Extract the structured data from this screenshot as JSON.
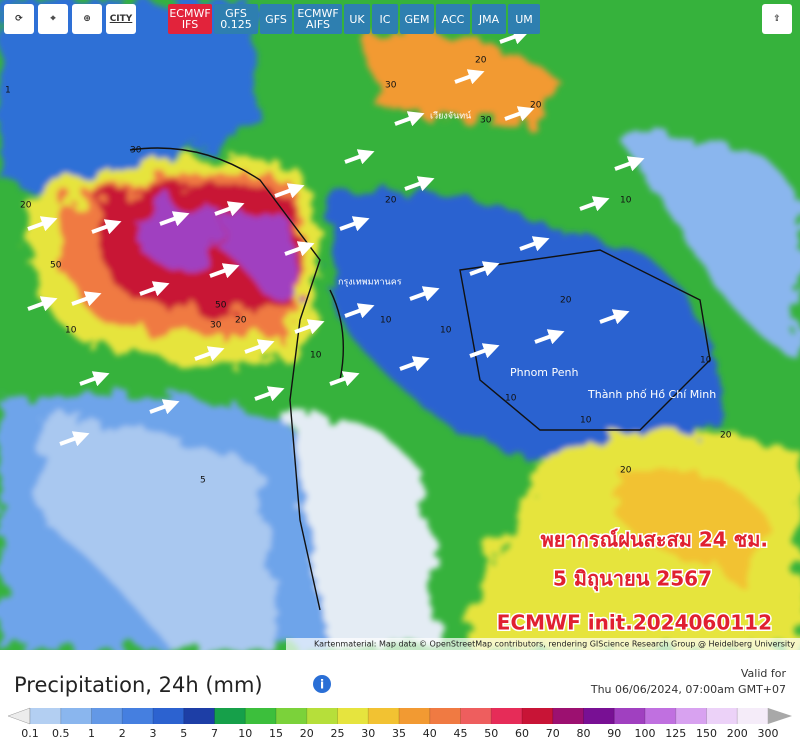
{
  "toolbar": {
    "city": "CITY",
    "models": [
      "ECMWF IFS",
      "GFS 0.125",
      "GFS",
      "ECMWF AIFS",
      "UK",
      "IC",
      "GEM",
      "ACC",
      "JMA",
      "UM"
    ],
    "active_model": 0
  },
  "map": {
    "places": [
      "Phnom Penh",
      "Thành phố Hồ Chí Minh",
      "กรุงเทพมหานคร",
      "เวียงจันทน์"
    ],
    "contour_labels": [
      "30",
      "20",
      "50",
      "10",
      "20",
      "30",
      "50",
      "20",
      "10",
      "30",
      "10",
      "20",
      "20",
      "10",
      "20",
      "10",
      "10",
      "10",
      "20",
      "30",
      "1",
      "20",
      "10",
      "5"
    ],
    "overlay": [
      "พยากรณ์ฝนสะสม 24 ชม.",
      "5 มิถุนายน 2567",
      "ECMWF init.2024060112"
    ],
    "attribution": "Kartenmaterial: Map data © OpenStreetMap contributors, rendering GIScience Research Group @ Heidelberg University"
  },
  "legend": {
    "title": "Precipitation, 24h (mm)",
    "valid_label": "Valid for",
    "valid_time": "Thu 06/06/2024, 07:00am GMT+07",
    "ticks": [
      0.1,
      0.5,
      1,
      2,
      3,
      5,
      7,
      10,
      15,
      20,
      25,
      30,
      35,
      40,
      45,
      50,
      60,
      70,
      80,
      90,
      100,
      125,
      150,
      200,
      300
    ],
    "colors": [
      "#ececec",
      "#b3cff2",
      "#8ab6ee",
      "#6398e6",
      "#457fe0",
      "#2c62d0",
      "#1d3ea6",
      "#16a04a",
      "#3cbf3c",
      "#7bd23a",
      "#b6df3a",
      "#e6e43e",
      "#f2c232",
      "#f29a32",
      "#f07a42",
      "#ee5e5e",
      "#e62c58",
      "#c81436",
      "#9c1070",
      "#781094",
      "#a040c0",
      "#c070e0",
      "#d8a2f0",
      "#ecd2f8",
      "#f5ecf9",
      "#a8a8a8"
    ]
  }
}
